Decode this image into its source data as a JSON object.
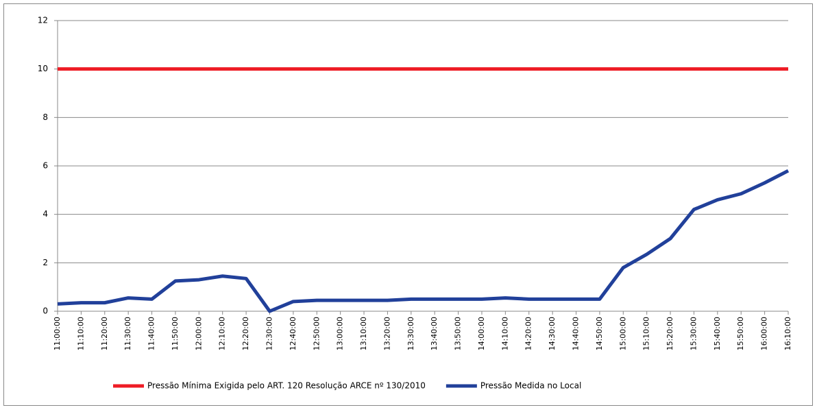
{
  "chart_data": {
    "type": "line",
    "categories": [
      "11:00:00",
      "11:10:00",
      "11:20:00",
      "11:30:00",
      "11:40:00",
      "11:50:00",
      "12:00:00",
      "12:10:00",
      "12:20:00",
      "12:30:00",
      "12:40:00",
      "12:50:00",
      "13:00:00",
      "13:10:00",
      "13:20:00",
      "13:30:00",
      "13:40:00",
      "13:50:00",
      "14:00:00",
      "14:10:00",
      "14:20:00",
      "14:30:00",
      "14:40:00",
      "14:50:00",
      "15:00:00",
      "15:10:00",
      "15:20:00",
      "15:30:00",
      "15:40:00",
      "15:50:00",
      "16:00:00",
      "16:10:00"
    ],
    "series": [
      {
        "name": "Pressão Mínima Exigida pelo ART. 120 Resolução ARCE nº 130/2010",
        "color": "#ee1c25",
        "values": [
          10,
          10,
          10,
          10,
          10,
          10,
          10,
          10,
          10,
          10,
          10,
          10,
          10,
          10,
          10,
          10,
          10,
          10,
          10,
          10,
          10,
          10,
          10,
          10,
          10,
          10,
          10,
          10,
          10,
          10,
          10,
          10
        ]
      },
      {
        "name": "Pressão Medida no Local",
        "color": "#21409a",
        "values": [
          0.3,
          0.35,
          0.35,
          0.55,
          0.5,
          1.25,
          1.3,
          1.45,
          1.35,
          0.0,
          0.4,
          0.45,
          0.45,
          0.45,
          0.45,
          0.5,
          0.5,
          0.5,
          0.5,
          0.55,
          0.5,
          0.5,
          0.5,
          0.5,
          1.8,
          2.35,
          3.0,
          4.2,
          4.6,
          4.85,
          5.3,
          5.8
        ]
      }
    ],
    "ylim": [
      0,
      12
    ],
    "yticks": [
      0,
      2,
      4,
      6,
      8,
      10,
      12
    ],
    "grid": true,
    "legend": "bottom"
  }
}
